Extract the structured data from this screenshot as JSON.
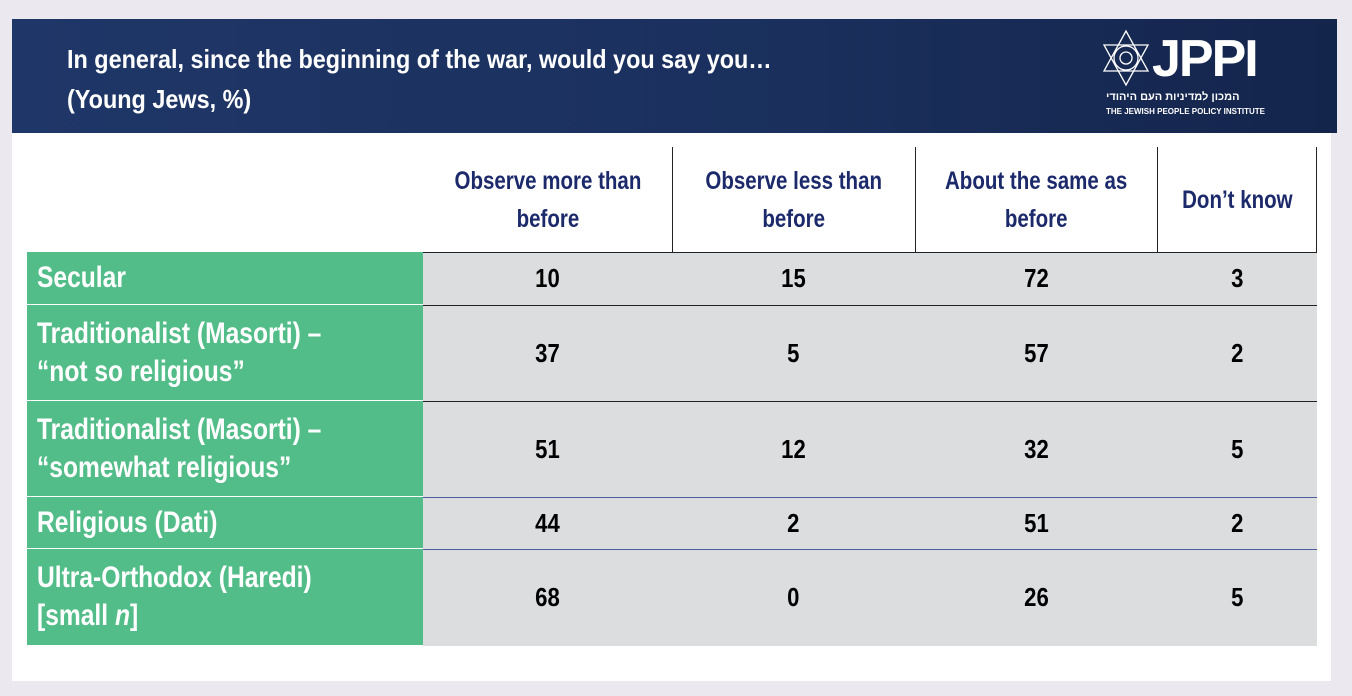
{
  "header": {
    "title_line1": "In general, since the beginning of the war, would you say you…",
    "title_line2": "(Young Jews, %)"
  },
  "logo": {
    "name": "JPPI",
    "hebrew": "המכון למדיניות העם היהודי",
    "english": "THE JEWISH PEOPLE POLICY INSTITUTE",
    "icon": "star-of-david-icon"
  },
  "table": {
    "columns": [
      [
        "Observe more than",
        "before"
      ],
      [
        "Observe less than",
        "before"
      ],
      [
        "About the same as",
        "before"
      ],
      [
        "Don’t know"
      ]
    ],
    "rows": [
      {
        "label": [
          "Secular"
        ],
        "values": [
          "10",
          "15",
          "72",
          "3"
        ]
      },
      {
        "label": [
          "Traditionalist (Masorti) –",
          "“not so religious”"
        ],
        "values": [
          "37",
          "5",
          "57",
          "2"
        ]
      },
      {
        "label": [
          "Traditionalist (Masorti) –",
          "“somewhat religious”"
        ],
        "values": [
          "51",
          "12",
          "32",
          "5"
        ]
      },
      {
        "label": [
          "Religious (Dati)"
        ],
        "values": [
          "44",
          "2",
          "51",
          "2"
        ]
      },
      {
        "label": [
          "Ultra-Orthodox (Haredi)"
        ],
        "label_small": "[small ",
        "label_n": "n",
        "label_end": "]",
        "values": [
          "68",
          "0",
          "26",
          "5"
        ]
      }
    ]
  },
  "colors": {
    "header": "#1f3768",
    "green": "#52bd88",
    "cell": "#dcdddf",
    "heading_text": "#1c2a6b"
  }
}
